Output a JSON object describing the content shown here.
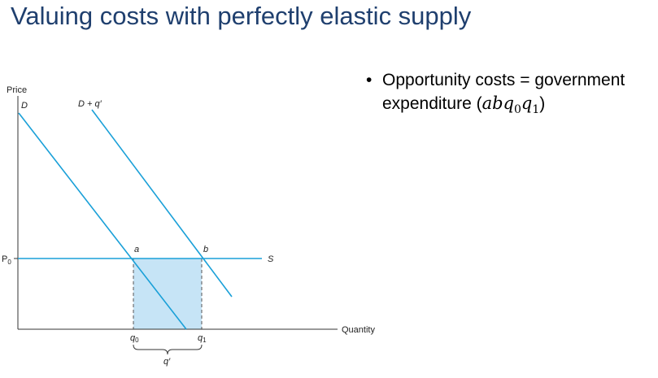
{
  "title": "Valuing costs with perfectly elastic supply",
  "bullets": [
    {
      "text": "Opportunity costs = government expenditure (",
      "math": "abq",
      "sub0": "0",
      "math2": "q",
      "sub1": "1",
      "close": ")"
    }
  ],
  "diagram": {
    "y_axis_label": "Price",
    "x_axis_label": "Quantity",
    "demand_label": "D",
    "shifted_demand_label": "D + q′",
    "supply_label": "S",
    "price_label": "P",
    "price_sub": "0",
    "point_a_label": "a",
    "point_b_label": "b",
    "q0_label": "q",
    "q0_sub": "0",
    "q1_label": "q",
    "q1_sub": "1",
    "q_prime_label": "q′",
    "colors": {
      "curves": "#1aa0d8",
      "shaded_area": "#c6e4f6",
      "axes": "#333333",
      "dashed": "#555555",
      "title": "#1f3f6e"
    }
  }
}
